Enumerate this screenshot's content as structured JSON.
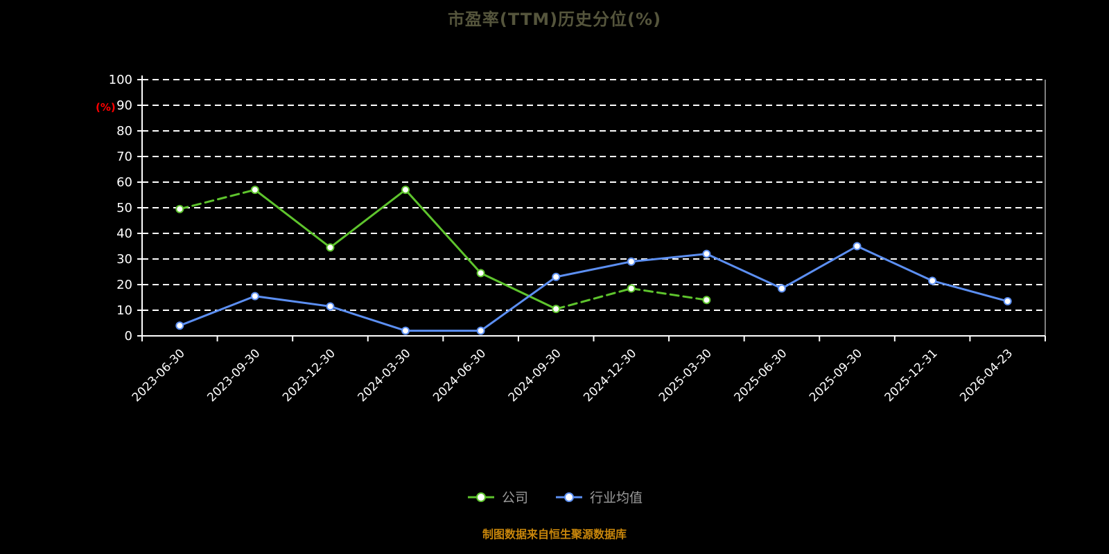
{
  "title": "市盈率(TTM)历史分位(%)",
  "footer": "制图数据来自恒生聚源数据库",
  "y_axis_label": "(%)",
  "legend": [
    {
      "key": "company",
      "label": "公司",
      "color": "#5ec42d"
    },
    {
      "key": "industry-average",
      "label": "行业均值",
      "color": "#5c8ff2"
    }
  ],
  "colors": {
    "background": "#000000",
    "axis": "#ffffff",
    "grid": "#ffffff",
    "tick_label": "#ffffff",
    "title": "#55553c",
    "footer": "#c8860b",
    "unit_label": "#ff0000",
    "legend_text": "#9c9c9c"
  },
  "chart_data": {
    "type": "line",
    "title": "市盈率(TTM)历史分位(%)",
    "xlabel": "",
    "ylabel": "(%)",
    "ylim": [
      0,
      100
    ],
    "y_ticks": [
      0,
      10,
      20,
      30,
      40,
      50,
      60,
      70,
      80,
      90,
      100
    ],
    "grid": "horizontal-dashed",
    "legend_position": "bottom",
    "categories": [
      "2023-06-30",
      "2023-09-30",
      "2023-12-30",
      "2024-03-30",
      "2024-06-30",
      "2024-09-30",
      "2024-12-30",
      "2025-03-30",
      "2025-06-30",
      "2025-09-30",
      "2025-12-31",
      "2026-04-23"
    ],
    "series": [
      {
        "key": "company",
        "name": "公司",
        "color": "#5ec42d",
        "values": [
          49.5,
          57,
          34.5,
          57,
          24.5,
          10.5,
          18.5,
          14,
          null,
          null,
          null,
          null
        ],
        "dashed_segments": [
          0,
          5,
          6
        ]
      },
      {
        "key": "industry-average",
        "name": "行业均值",
        "color": "#5c8ff2",
        "values": [
          4,
          15.5,
          11.5,
          2,
          2,
          23,
          29,
          32,
          18.5,
          35,
          21.5,
          13.5
        ],
        "dashed_segments": []
      }
    ]
  }
}
